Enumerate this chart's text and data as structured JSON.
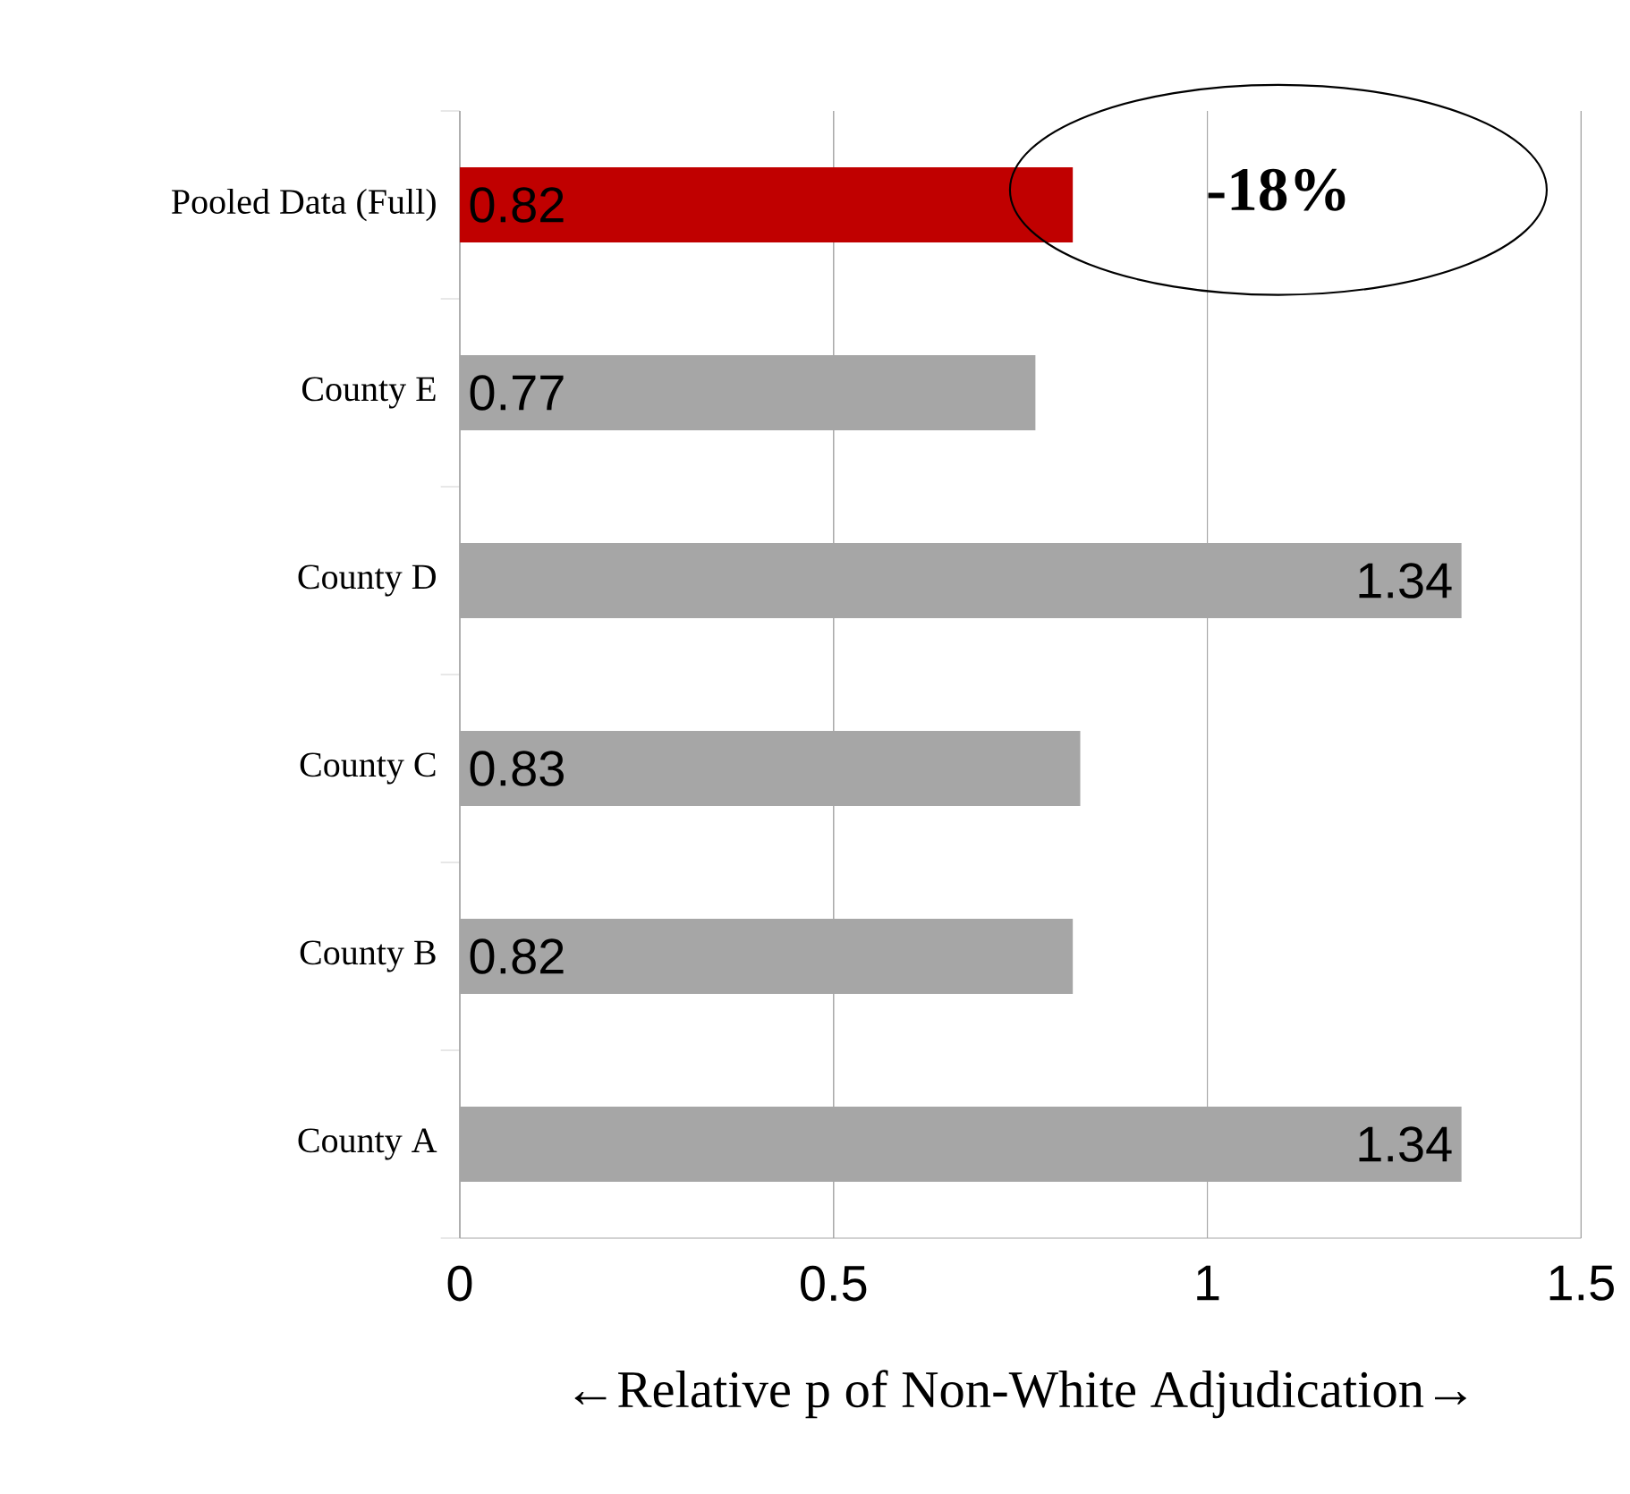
{
  "chart_data": {
    "type": "bar",
    "orientation": "horizontal",
    "categories": [
      "Pooled Data (Full)",
      "County E",
      "County D",
      "County C",
      "County B",
      "County A"
    ],
    "values": [
      0.82,
      0.77,
      1.34,
      0.83,
      0.82,
      1.34
    ],
    "colors": [
      "#c00000",
      "#a6a6a6",
      "#a6a6a6",
      "#a6a6a6",
      "#a6a6a6",
      "#a6a6a6"
    ],
    "xlim": [
      0,
      1.5
    ],
    "xticks": [
      0,
      0.5,
      1,
      1.5
    ],
    "grid": "x",
    "data_labels": true,
    "xlabel": "←Relative p of Non-White Adjudication→",
    "annotations": [
      "**-18%**"
    ]
  }
}
